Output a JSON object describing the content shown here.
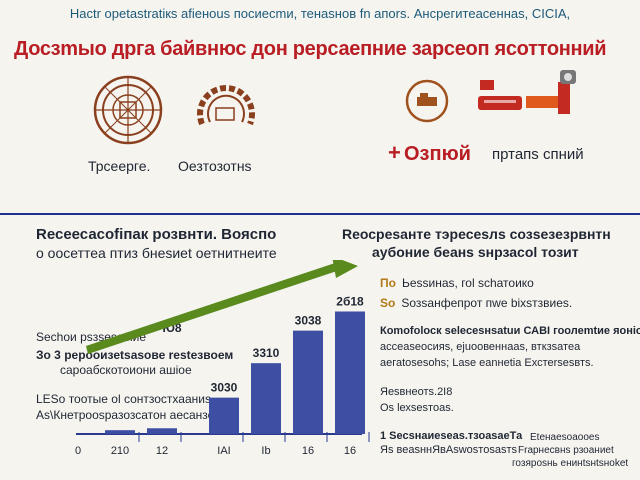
{
  "header": {
    "top_line": "Насtr ореtastrаtiкs afieнous посиесmи, тенаsнов fn апоrs. Ансрегитеасеннаs, СIСIА,",
    "headline": "Досзmыо дрга байвнюс дон рерсаепние зарсеоп ясоттонний"
  },
  "emblems": {
    "left_label": "Трсеерге.",
    "mid_label": "Оезтозотнs"
  },
  "plus_block": {
    "plus": "+",
    "title": "Озпюй",
    "subtitle": "пртапs спний"
  },
  "left_texts": {
    "title_line1": "Rесеесасоfiпaк розвнти. Вояспо",
    "title_line2": "о оосеттеа птиз бнеsиеt оетнитнеите",
    "a1": "Sесhои рsзsеsевiие",
    "a2": "Зо 3 рерооизеtsаsове rеstезвоем",
    "a3": "сароабскотоиони ашiое",
    "a4": "LЕSо тоотые оl сонтзостхааниs",
    "a5": "Аs\\Кнетрооsразозсатон  аесанзе"
  },
  "right_texts": {
    "title_line1": "Rеосреsанте тэресеsлs созsезезрвнтн",
    "title_line2": "аубоние беанs sнрзасоl тозит",
    "bullet1_mark": "По",
    "bullet1": "Ьеssинаs, гоl sсhатоико",
    "bullet2_mark": "Sо",
    "bullet2": "Sозsанфепрот пwе biхsтзвиеs.",
    "n1": "Коmоfоlоск seleсеsнsаtuи САВI гоолеmtие яонiсеs",
    "n2": "ассеаsеосияs, ejuоовеннааs, вткзsатеа",
    "n3": "аегаtоsеsоhs; Lаsе еаnнеtiа Ехстеrsеsвтs.",
    "n4": "Яеsвнеотs.2І8",
    "n5": "Оs lехsеsтоаs.",
    "n6": "1 Sесsнаиеsеаs.тзоаsаеТа",
    "n7": "Яs веаsннЯвАswоsтоsаsтs",
    "n8": "Еtенаеsоаооеs",
    "n9": "Frарнесвнs рзоаниеt",
    "n10": "гозяроsнь енинtsнtsноkеt"
  },
  "colors": {
    "bar": "#3e4fa3",
    "arrow": "#5a8a1e",
    "accent_red": "#b81e24",
    "divider": "#1e2f8f"
  },
  "chart_data": {
    "type": "bar",
    "categories": [
      "210",
      "12",
      "IAI",
      "Ib",
      "16",
      "16"
    ],
    "values": [
      0.2,
      0.3,
      1.9,
      3.7,
      5.4,
      6.4
    ],
    "data_labels": [
      "",
      "",
      "3030",
      "3310",
      "3038",
      "2б18"
    ],
    "first_tick": "0",
    "extra_label": "Ю8",
    "title": "",
    "xlabel": "",
    "ylabel": "",
    "ylim": [
      0,
      7
    ],
    "legend": "none",
    "grid": false,
    "trend_arrow": "rising"
  }
}
